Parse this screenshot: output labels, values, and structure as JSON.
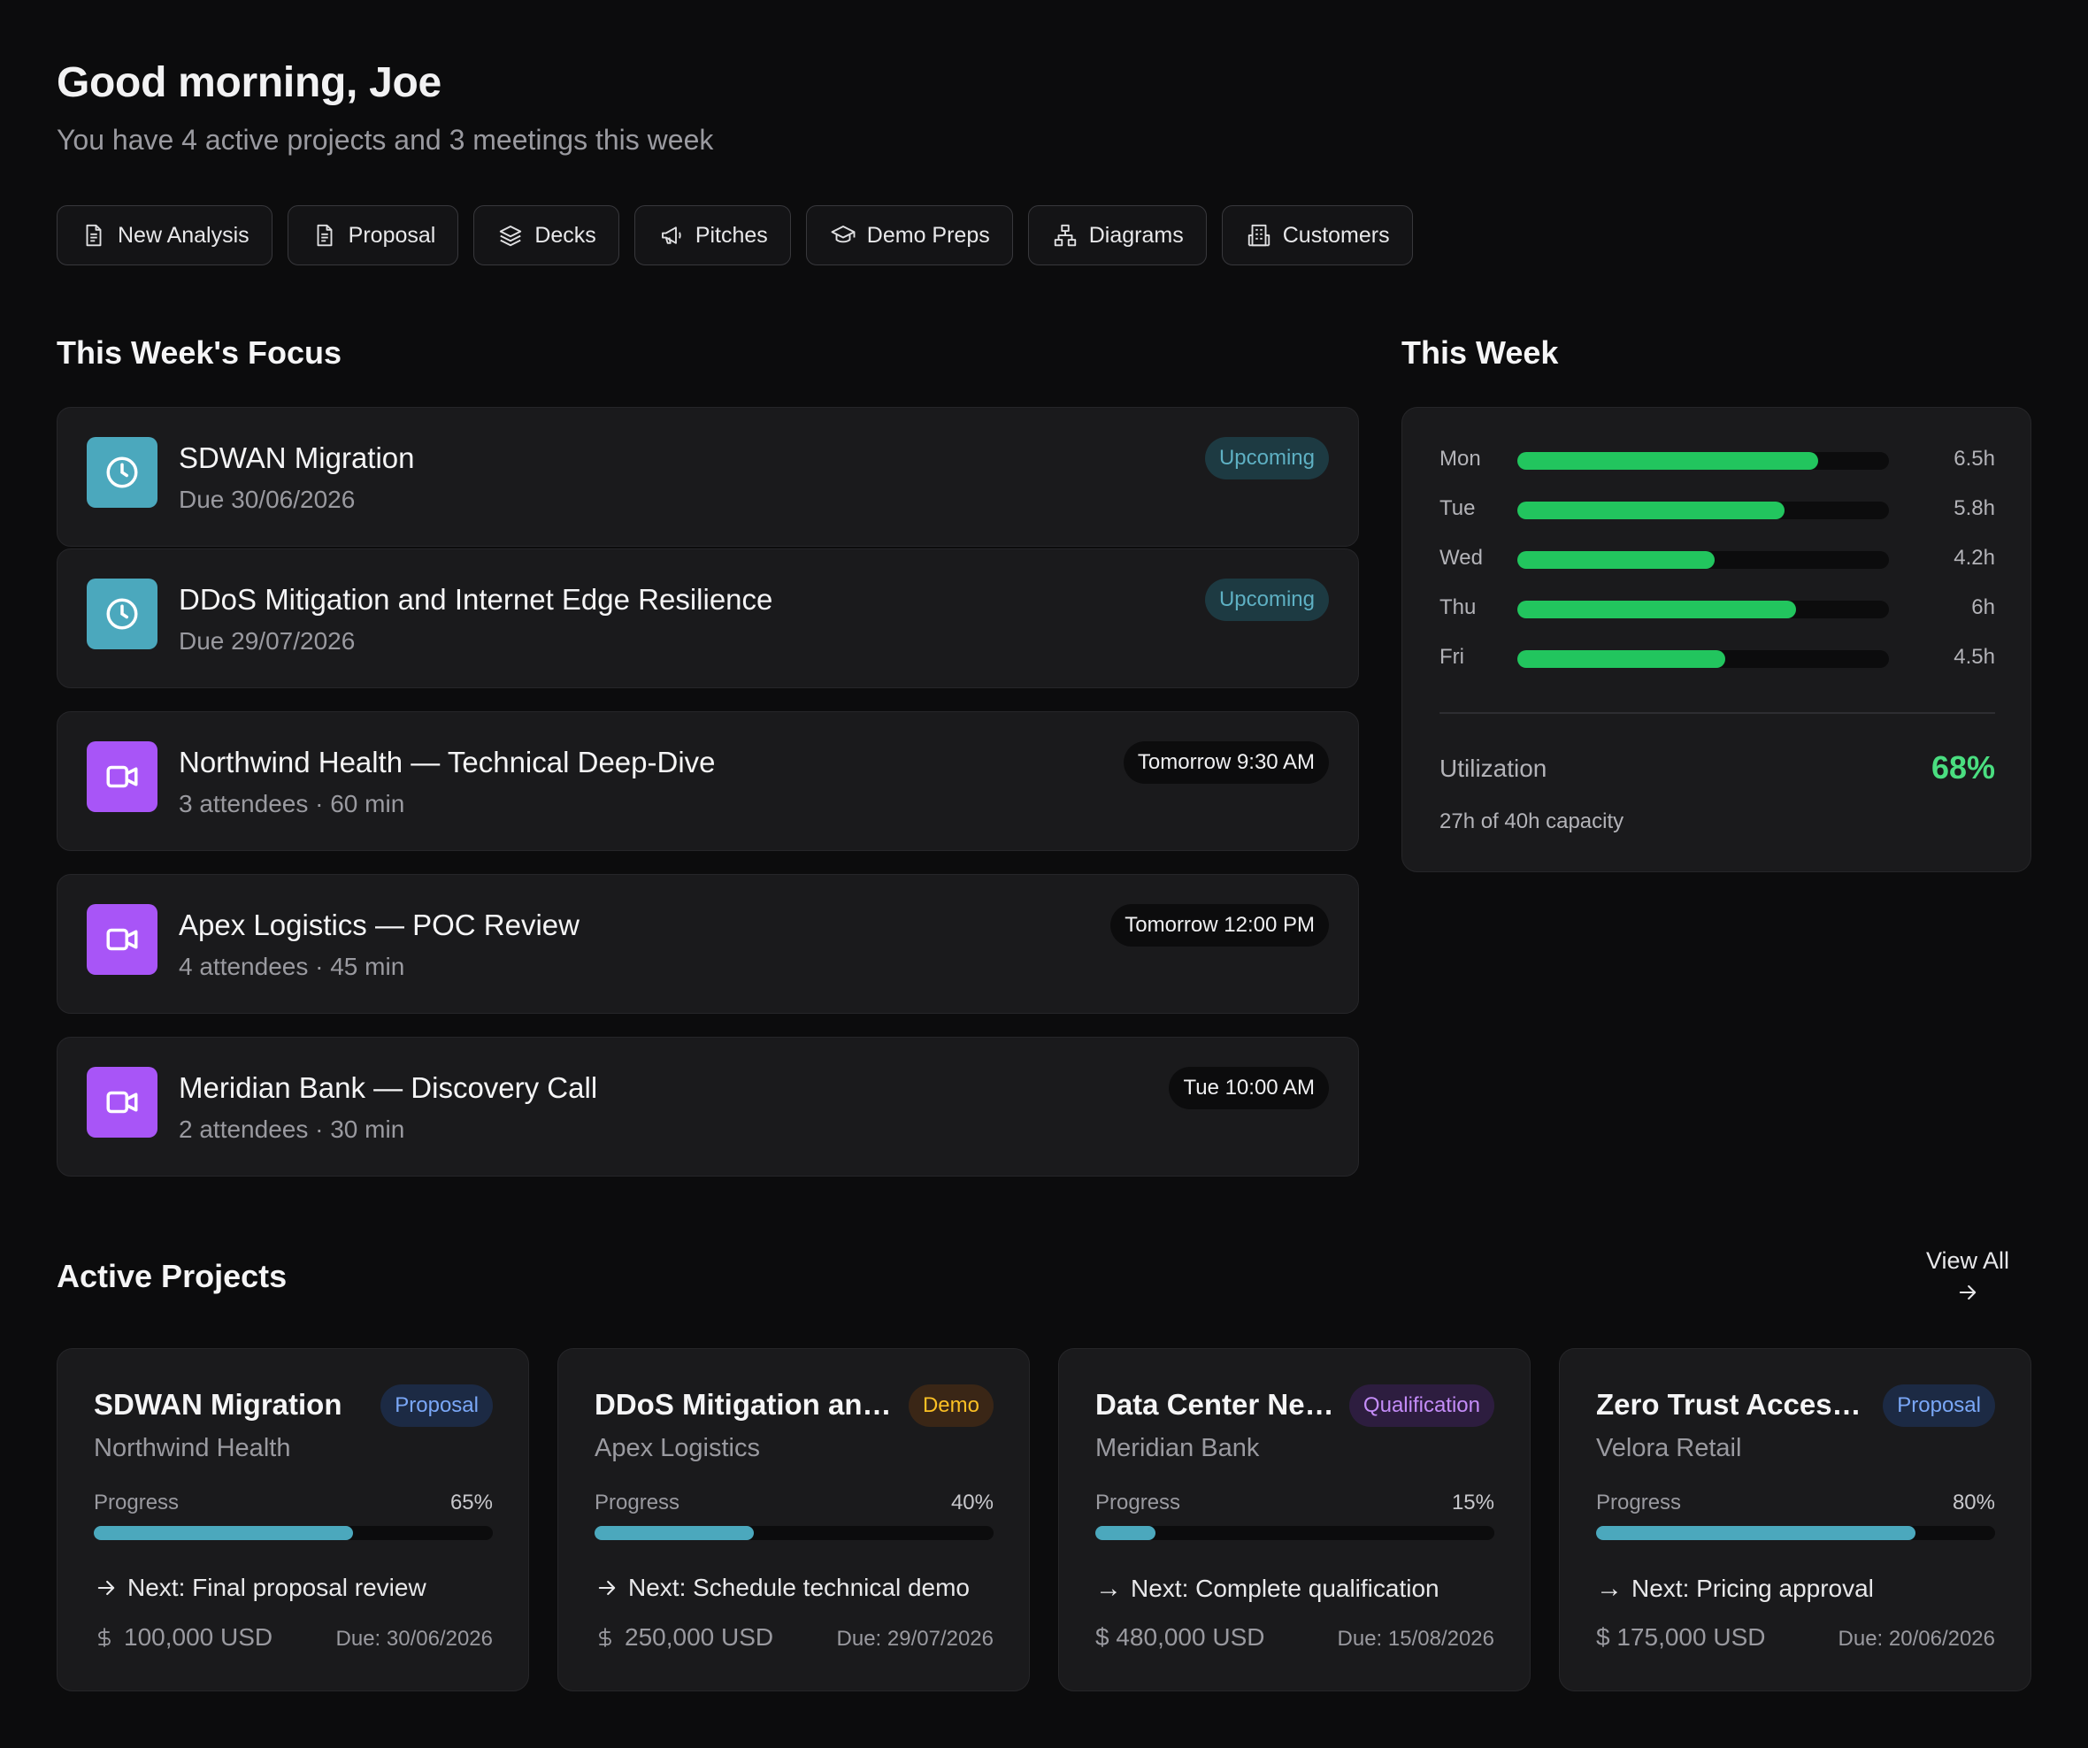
{
  "header": {
    "greeting": "Good morning, Joe",
    "subtitle": "You have 4 active projects and 3 meetings this week"
  },
  "actions": [
    {
      "label": "New Analysis",
      "icon": "document-icon"
    },
    {
      "label": "Proposal",
      "icon": "document-icon"
    },
    {
      "label": "Decks",
      "icon": "layers-icon"
    },
    {
      "label": "Pitches",
      "icon": "megaphone-icon"
    },
    {
      "label": "Demo Preps",
      "icon": "graduation-cap-icon"
    },
    {
      "label": "Diagrams",
      "icon": "network-icon"
    },
    {
      "label": "Customers",
      "icon": "building-icon"
    }
  ],
  "focus": {
    "title": "This Week's Focus",
    "items": [
      {
        "title": "SDWAN Migration",
        "sub": "Due 30/06/2026",
        "badge": "Upcoming",
        "icon": "clock-icon"
      },
      {
        "title": "DDoS Mitigation and Internet Edge Resilience",
        "sub": "Due 29/07/2026",
        "badge": "Upcoming",
        "icon": "clock-icon"
      },
      {
        "title": "Northwind Health — Technical Deep-Dive",
        "sub": "3 attendees · 60 min",
        "badge": "Tomorrow 9:30 AM",
        "icon": "video-icon"
      },
      {
        "title": "Apex Logistics — POC Review",
        "sub": "4 attendees · 45 min",
        "badge": "Tomorrow 12:00 PM",
        "icon": "video-icon"
      },
      {
        "title": "Meridian Bank — Discovery Call",
        "sub": "2 attendees · 30 min",
        "badge": "Tue 10:00 AM",
        "icon": "video-icon"
      }
    ]
  },
  "week": {
    "title": "This Week",
    "days": [
      {
        "day": "Mon",
        "hours": "6.5h",
        "fill": 0.81
      },
      {
        "day": "Tue",
        "hours": "5.8h",
        "fill": 0.72
      },
      {
        "day": "Wed",
        "hours": "4.2h",
        "fill": 0.53
      },
      {
        "day": "Thu",
        "hours": "6h",
        "fill": 0.75
      },
      {
        "day": "Fri",
        "hours": "4.5h",
        "fill": 0.56
      }
    ],
    "utilization_label": "Utilization",
    "utilization_value": "68%",
    "capacity": "27h of 40h capacity",
    "accent": "#22c55e"
  },
  "projects": {
    "title": "Active Projects",
    "view_all": "View All",
    "items": [
      {
        "title": "SDWAN Migration",
        "client": "Northwind Health",
        "badge": "Proposal",
        "progress_label": "Progress",
        "progress": "65%",
        "progress_value": 65,
        "next": "Next: Final proposal review",
        "amount": "100,000 USD",
        "due": "Due: 30/06/2026"
      },
      {
        "title": "DDoS Mitigation and Internet Edge Resilience",
        "client": "Apex Logistics",
        "badge": "Demo",
        "progress_label": "Progress",
        "progress": "40%",
        "progress_value": 40,
        "next": "Next: Schedule technical demo",
        "amount": "250,000 USD",
        "due": "Due: 29/07/2026"
      },
      {
        "title": "Data Center Network Refresh",
        "client": "Meridian Bank",
        "badge": "Qualification",
        "progress_label": "Progress",
        "progress": "15%",
        "progress_value": 15,
        "next": "Next: Complete qualification",
        "amount": "$ 480,000 USD",
        "due": "Due: 15/08/2026"
      },
      {
        "title": "Zero Trust Access Rollout",
        "client": "Velora Retail",
        "badge": "Proposal",
        "progress_label": "Progress",
        "progress": "80%",
        "progress_value": 80,
        "next": "Next: Pricing approval",
        "amount": "$ 175,000 USD",
        "due": "Due: 20/06/2026"
      }
    ]
  },
  "colors": {
    "background": "#0c0c0d",
    "card": "#1a1a1c",
    "teal": "#4ba8bd",
    "purple": "#a855f7",
    "green": "#4ade80"
  }
}
